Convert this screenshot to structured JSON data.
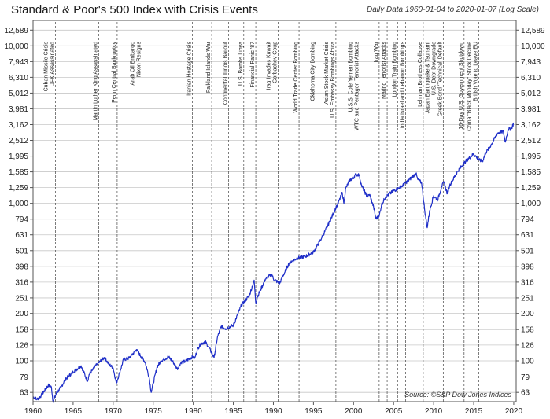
{
  "chart_data": {
    "type": "line",
    "title": "Standard & Poor's 500 Index with Crisis Events",
    "subtitle": "Daily Data 1960-01-04 to 2020-01-07 (Log Scale)",
    "source": "Source: ©S&P Dow Jones Indices",
    "y_scale": "log",
    "ylim": [
      55,
      14500
    ],
    "xlim": [
      1960,
      2020.3
    ],
    "y_ticks": [
      "12,589",
      "10,000",
      "7,943",
      "6,310",
      "5,012",
      "3,981",
      "3,162",
      "2,512",
      "1,995",
      "1,585",
      "1,259",
      "1,000",
      "794",
      "631",
      "501",
      "398",
      "316",
      "251",
      "200",
      "158",
      "126",
      "100",
      "79",
      "63"
    ],
    "x_ticks": [
      "1960",
      "1965",
      "1970",
      "1975",
      "1980",
      "1985",
      "1990",
      "1995",
      "2000",
      "2005",
      "2010",
      "2015",
      "2020"
    ],
    "grid": true,
    "series": [
      {
        "name": "",
        "color": "#1f2fc8",
        "x": [
          1960.0,
          1960.5,
          1961.0,
          1961.9,
          1962.3,
          1962.5,
          1962.9,
          1963.5,
          1964.0,
          1965.0,
          1966.0,
          1966.8,
          1967.0,
          1968.0,
          1968.9,
          1969.5,
          1970.0,
          1970.4,
          1970.8,
          1971.3,
          1972.0,
          1972.9,
          1973.5,
          1974.0,
          1974.5,
          1974.75,
          1975.0,
          1975.5,
          1976.0,
          1976.9,
          1977.5,
          1978.0,
          1978.5,
          1979.0,
          1979.9,
          1980.2,
          1980.5,
          1980.9,
          1981.5,
          1982.0,
          1982.6,
          1983.0,
          1983.5,
          1984.0,
          1985.0,
          1986.0,
          1987.0,
          1987.6,
          1987.8,
          1988.0,
          1989.0,
          1989.8,
          1990.0,
          1990.8,
          1991.0,
          1992.0,
          1993.0,
          1994.0,
          1995.0,
          1996.0,
          1997.0,
          1997.8,
          1998.0,
          1998.6,
          1998.8,
          1999.0,
          1999.5,
          2000.0,
          2000.2,
          2000.7,
          2001.0,
          2001.7,
          2002.0,
          2002.5,
          2002.8,
          2003.2,
          2003.5,
          2004.0,
          2005.0,
          2006.0,
          2007.0,
          2007.8,
          2008.0,
          2008.5,
          2008.9,
          2009.2,
          2009.5,
          2010.0,
          2010.5,
          2011.0,
          2011.3,
          2011.7,
          2012.0,
          2013.0,
          2014.0,
          2015.0,
          2015.7,
          2016.1,
          2016.5,
          2017.0,
          2018.0,
          2018.7,
          2018.95,
          2019.3,
          2019.7,
          2020.0
        ],
        "y": [
          59,
          57,
          60,
          70,
          68,
          55,
          62,
          68,
          76,
          85,
          93,
          74,
          82,
          95,
          105,
          95,
          90,
          72,
          84,
          102,
          104,
          118,
          106,
          98,
          78,
          63,
          72,
          92,
          100,
          106,
          98,
          89,
          98,
          99,
          106,
          104,
          118,
          128,
          132,
          120,
          105,
          140,
          166,
          160,
          168,
          225,
          260,
          325,
          230,
          255,
          330,
          355,
          330,
          310,
          330,
          420,
          450,
          460,
          490,
          600,
          760,
          940,
          975,
          1170,
          1000,
          1230,
          1400,
          1450,
          1520,
          1520,
          1300,
          1100,
          1140,
          950,
          800,
          830,
          980,
          1100,
          1200,
          1280,
          1420,
          1550,
          1420,
          1350,
          890,
          700,
          900,
          1120,
          1050,
          1280,
          1360,
          1150,
          1300,
          1600,
          1850,
          2060,
          1880,
          1850,
          2100,
          2270,
          2800,
          2850,
          2450,
          2950,
          2980,
          3240
        ]
      }
    ],
    "events": [
      {
        "year": 1962.8,
        "labels": [
          "Cuban Missile Crisis",
          "JFK Assassinated"
        ]
      },
      {
        "year": 1968.2,
        "labels": [
          "Martin Luther King Assassinated"
        ]
      },
      {
        "year": 1970.5,
        "labels": [
          "Penn Central Bankruptcy"
        ]
      },
      {
        "year": 1973.6,
        "labels": [
          "Arab Oil Embargo",
          "Nixon Resigns"
        ]
      },
      {
        "year": 1979.9,
        "labels": [
          "Iranian Hostage Crisis"
        ]
      },
      {
        "year": 1982.3,
        "labels": [
          "Falkland Islands War"
        ]
      },
      {
        "year": 1984.4,
        "labels": [
          "Continental Illinois Bailout"
        ]
      },
      {
        "year": 1986.3,
        "labels": [
          "U.S. Bombs Libya"
        ]
      },
      {
        "year": 1987.8,
        "labels": [
          "Financial Panic '87"
        ]
      },
      {
        "year": 1990.6,
        "labels": [
          "Iraq Invades Kuwait",
          "Gorbachev Coup"
        ]
      },
      {
        "year": 1993.2,
        "labels": [
          "World Trade Center Bombing"
        ]
      },
      {
        "year": 1995.3,
        "labels": [
          "Oklahoma City Bombing"
        ]
      },
      {
        "year": 1997.8,
        "labels": [
          "Asian Stock Market Crisis",
          "U.S. Embassy Bombings Africa"
        ]
      },
      {
        "year": 2000.8,
        "labels": [
          "U.S.S. Cole Yemen Bombing",
          "WTC and Pentagon Terrorist Attacks"
        ]
      },
      {
        "year": 2003.2,
        "labels": [
          "Iraq War"
        ]
      },
      {
        "year": 2004.2,
        "labels": [
          "Madrid Terrorist Attacks"
        ]
      },
      {
        "year": 2005.5,
        "labels": [
          "London Train Bombing"
        ]
      },
      {
        "year": 2006.5,
        "labels": [
          "India Israel and Lebanon Bombings"
        ]
      },
      {
        "year": 2008.7,
        "labels": [
          "Lehman Brothers Collapse"
        ]
      },
      {
        "year": 2011.2,
        "labels": [
          "Japan Earthquake & Tsunami",
          "U.S. Debt Downgrade",
          "Greek Bond 'Technical' Default"
        ]
      },
      {
        "year": 2013.8,
        "labels": [
          "16-Day U.S. Government Shutdown"
        ]
      },
      {
        "year": 2015.65,
        "labels": [
          "China \"Black Monday\" Stock Decline",
          "British Vote to Leave EU"
        ]
      }
    ]
  }
}
